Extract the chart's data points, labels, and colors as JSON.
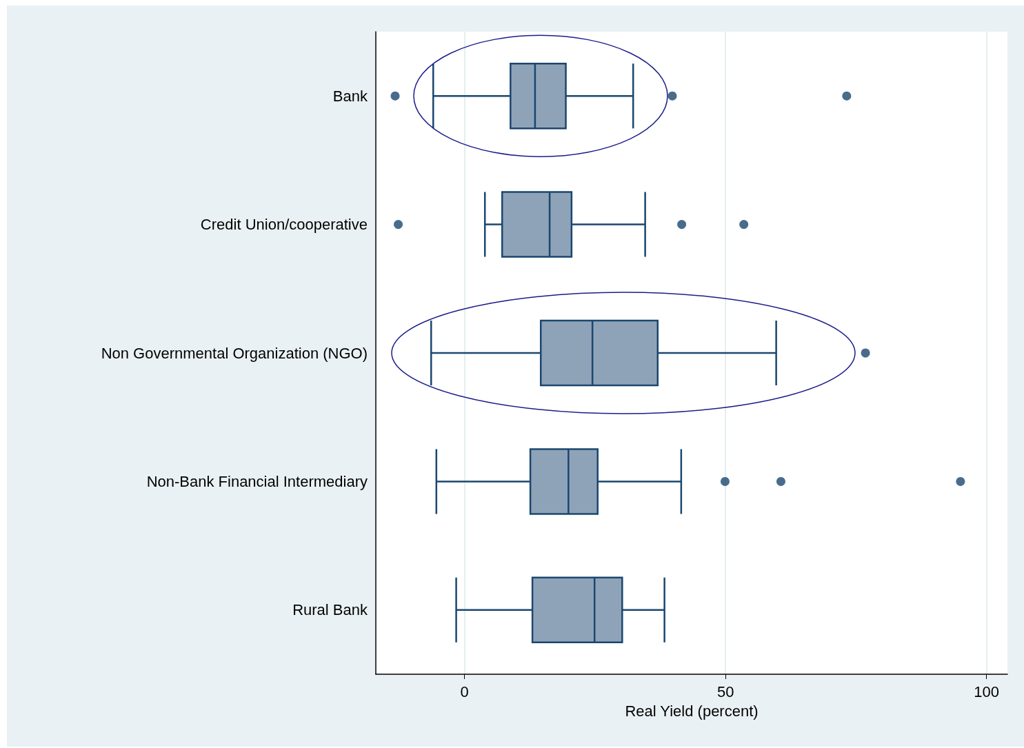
{
  "chart_data": {
    "type": "box",
    "orientation": "horizontal",
    "xlabel": "Real Yield (percent)",
    "categories": [
      "Bank",
      "Credit Union/cooperative",
      "Non Governmental Organization (NGO)",
      "Non-Bank Financial Intermediary",
      "Rural Bank"
    ],
    "boxes": [
      {
        "low": -6.0,
        "q1": 8.8,
        "median": 13.5,
        "q3": 19.4,
        "high": 32.3,
        "outliers": [
          -13.3,
          39.8,
          73.2
        ]
      },
      {
        "low": 3.9,
        "q1": 7.2,
        "median": 16.3,
        "q3": 20.5,
        "high": 34.6,
        "outliers": [
          -12.7,
          41.6,
          53.5
        ]
      },
      {
        "low": -6.4,
        "q1": 14.6,
        "median": 24.5,
        "q3": 37.0,
        "high": 59.7,
        "outliers": [
          76.8
        ]
      },
      {
        "low": -5.4,
        "q1": 12.6,
        "median": 19.9,
        "q3": 25.5,
        "high": 41.5,
        "outliers": [
          49.9,
          60.6,
          95.0
        ]
      },
      {
        "low": -1.6,
        "q1": 13.0,
        "median": 24.9,
        "q3": 30.2,
        "high": 38.3
      }
    ],
    "color": "#8fa3b8",
    "xlim": [
      -17,
      104
    ],
    "xticks": [
      0,
      50,
      100
    ],
    "grid": "x"
  }
}
